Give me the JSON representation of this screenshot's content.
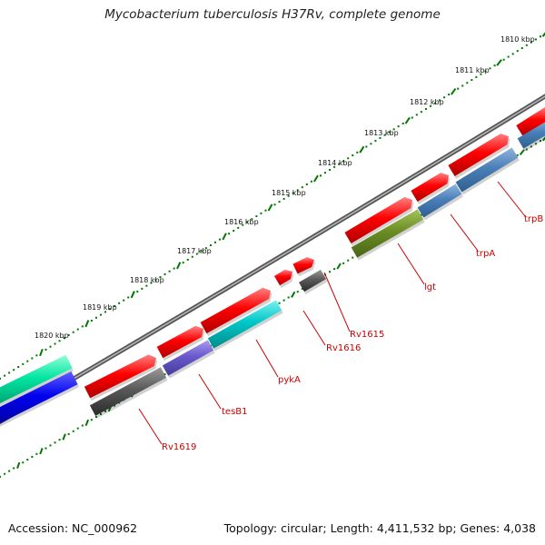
{
  "title": "Mycobacterium tuberculosis H37Rv, complete genome",
  "footer": {
    "accession": "Accession: NC_000962",
    "summary": "Topology: circular; Length: 4,411,532 bp; Genes: 4,038"
  },
  "ruler": {
    "unit": "kbp",
    "ticks": [
      "1810 kbp",
      "1811 kbp",
      "1812 kbp",
      "1813 kbp",
      "1814 kbp",
      "1815 kbp",
      "1816 kbp",
      "1817 kbp",
      "1818 kbp",
      "1819 kbp",
      "1820 kbp"
    ]
  },
  "gene_labels": [
    "trpB",
    "trpA",
    "lgt",
    "Rv1615",
    "Rv1616",
    "pykA",
    "tesB1",
    "Rv1619"
  ],
  "colors": {
    "cds": "#ff0000",
    "gene_grey": "#555555",
    "trp_blue": "#4a80b8",
    "lgt_olive": "#6b8e23",
    "pykA_cyan": "#00c8c8",
    "tesB1_purple": "#6a5acd",
    "label_red": "#cc0000",
    "tick_green": "#007700",
    "backbone": "#777777",
    "left_teal": "#00e5a0",
    "left_blue": "#0000ee"
  }
}
